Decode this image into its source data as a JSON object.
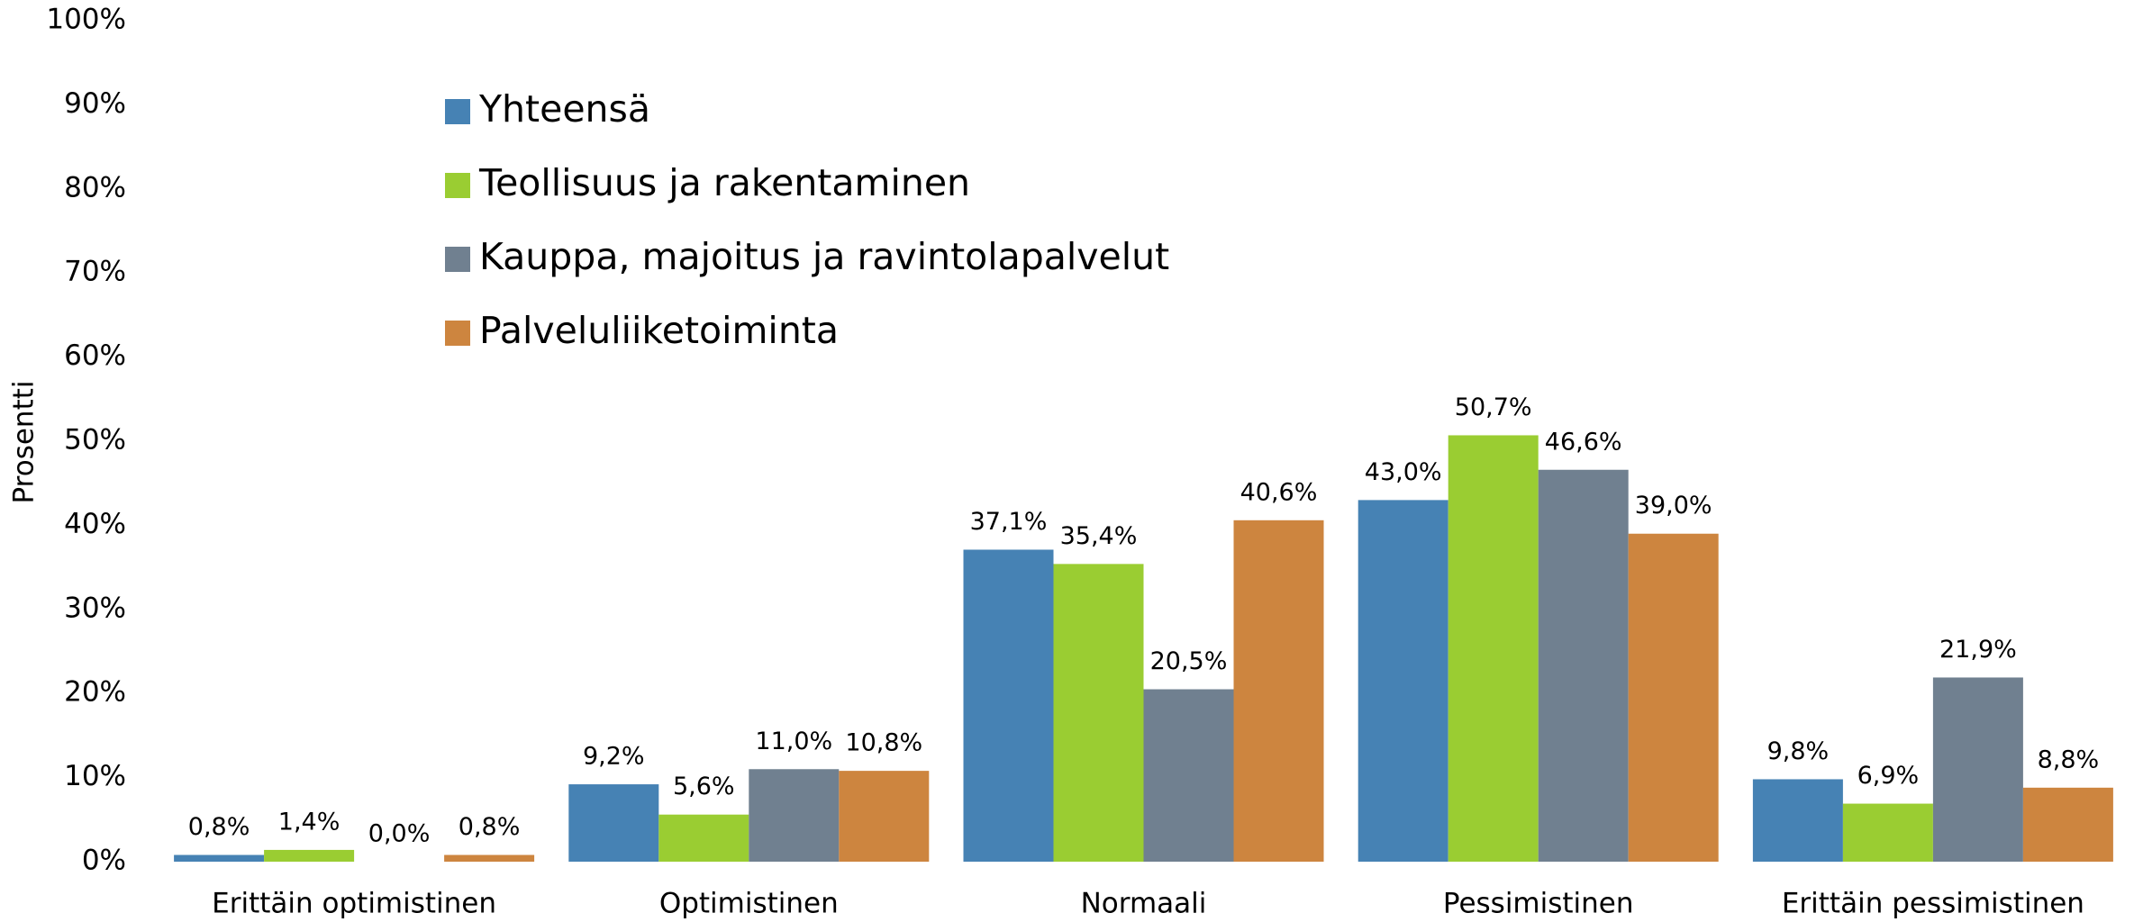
{
  "chart_data": {
    "type": "bar",
    "y_axis_label": "Prosentti",
    "categories": [
      "Erittäin optimistinen",
      "Optimistinen",
      "Normaali",
      "Pessimistinen",
      "Erittäin pessimistinen"
    ],
    "series": [
      {
        "name": "Yhteensä",
        "color": "#4682b4",
        "values": [
          0.8,
          9.2,
          37.1,
          43.0,
          9.8
        ],
        "value_labels": [
          "0,8%",
          "9,2%",
          "37,1%",
          "43,0%",
          "9,8%"
        ]
      },
      {
        "name": "Teollisuus ja rakentaminen",
        "color": "#9acd32",
        "values": [
          1.4,
          5.6,
          35.4,
          50.7,
          6.9
        ],
        "value_labels": [
          "1,4%",
          "5,6%",
          "35,4%",
          "50,7%",
          "6,9%"
        ]
      },
      {
        "name": "Kauppa, majoitus ja ravintolapalvelut",
        "color": "#708090",
        "values": [
          0.0,
          11.0,
          20.5,
          46.6,
          21.9
        ],
        "value_labels": [
          "0,0%",
          "11,0%",
          "20,5%",
          "46,6%",
          "21,9%"
        ]
      },
      {
        "name": "Palveluliiketoiminta",
        "color": "#cd853f",
        "values": [
          0.8,
          10.8,
          40.6,
          39.0,
          8.8
        ],
        "value_labels": [
          "0,8%",
          "10,8%",
          "40,6%",
          "39,0%",
          "8,8%"
        ]
      }
    ],
    "ylim": [
      0,
      100
    ],
    "yticks": [
      {
        "value": 0,
        "label": "0%"
      },
      {
        "value": 10,
        "label": "10%"
      },
      {
        "value": 20,
        "label": "20%"
      },
      {
        "value": 30,
        "label": "30%"
      },
      {
        "value": 40,
        "label": "40%"
      },
      {
        "value": 50,
        "label": "50%"
      },
      {
        "value": 60,
        "label": "60%"
      },
      {
        "value": 70,
        "label": "70%"
      },
      {
        "value": 80,
        "label": "80%"
      },
      {
        "value": 90,
        "label": "90%"
      },
      {
        "value": 100,
        "label": "100%"
      }
    ],
    "legend": "upper left"
  }
}
